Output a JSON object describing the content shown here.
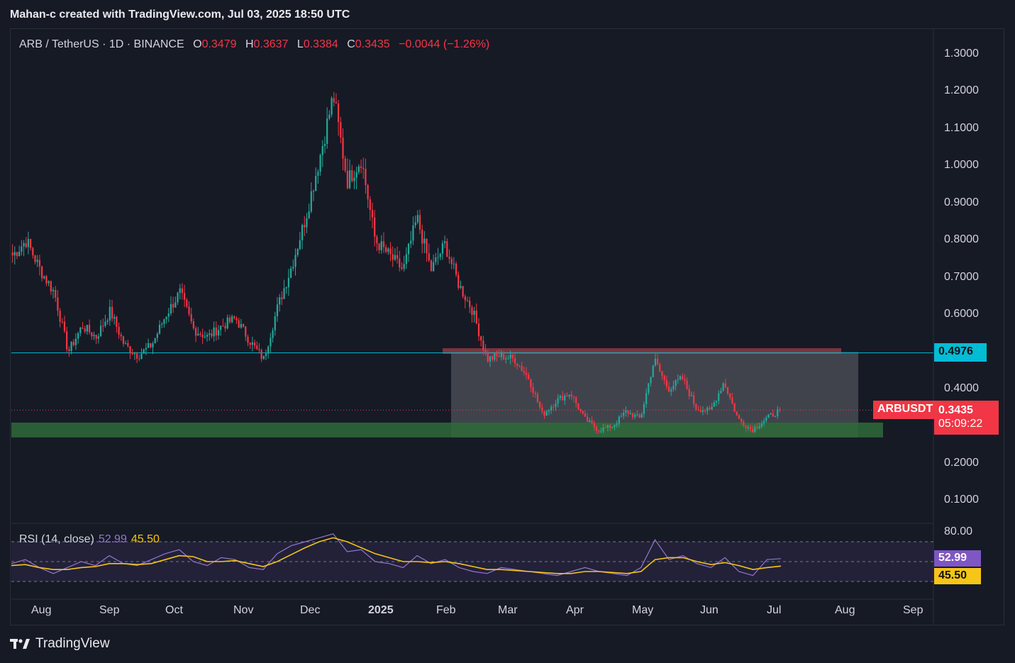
{
  "header": {
    "credit": "Mahan-c created with TradingView.com, Jul 03, 2025 18:50 UTC"
  },
  "legend": {
    "symbol": "ARB / TetherUS · 1D · BINANCE",
    "open_label": "O",
    "open": "0.3479",
    "high_label": "H",
    "high": "0.3637",
    "low_label": "L",
    "low": "0.3384",
    "close_label": "C",
    "close": "0.3435",
    "change": "−0.0044 (−1.26%)"
  },
  "rsi_legend": {
    "label": "RSI (14, close)",
    "rsi": "52.99",
    "ma": "45.50"
  },
  "badges": {
    "level": "0.4976",
    "symbol": "ARBUSDT",
    "price": "0.3435",
    "countdown": "05:09:22",
    "rsi": "52.99",
    "rsi_ma": "45.50"
  },
  "footer": {
    "brand": "TradingView"
  },
  "colors": {
    "up": "#26a69a",
    "down": "#f23645",
    "rsi": "#9575cd",
    "rsi_ma": "#f5c518",
    "level": "#00bcd4",
    "support": "#2e6b3a",
    "resistance": "#b23a48"
  },
  "chart_data": {
    "type": "candlestick",
    "price_axis": {
      "ticks": [
        "1.3000",
        "1.2000",
        "1.1000",
        "1.0000",
        "0.9000",
        "0.8000",
        "0.7000",
        "0.6000",
        "0.4000",
        "0.2000",
        "0.1000"
      ],
      "range": [
        0.05,
        1.32
      ]
    },
    "time_axis": {
      "ticks": [
        "Aug",
        "Sep",
        "Oct",
        "Nov",
        "Dec",
        "2025",
        "Feb",
        "Mar",
        "Apr",
        "May",
        "Jun",
        "Jul",
        "Aug",
        "Sep"
      ]
    },
    "rsi_axis": {
      "ticks": [
        "80.00"
      ],
      "upper": 70,
      "mid": 50,
      "lower": 30
    },
    "horizontal_level": 0.4976,
    "current_price": 0.3435,
    "support_zone": [
      0.27,
      0.31
    ],
    "resistance_zone": [
      0.495,
      0.51
    ],
    "range_box": {
      "from": "Feb",
      "to": "Aug",
      "low": 0.27,
      "high": 0.5
    },
    "close_path": [
      {
        "month": "Jul",
        "price": 0.76
      },
      {
        "month": "Jul",
        "price": 0.8
      },
      {
        "month": "Jul",
        "price": 0.72
      },
      {
        "month": "Jul",
        "price": 0.66
      },
      {
        "month": "Aug",
        "price": 0.5
      },
      {
        "month": "Aug",
        "price": 0.57
      },
      {
        "month": "Aug",
        "price": 0.54
      },
      {
        "month": "Sep",
        "price": 0.61
      },
      {
        "month": "Sep",
        "price": 0.52
      },
      {
        "month": "Sep",
        "price": 0.49
      },
      {
        "month": "Sep",
        "price": 0.52
      },
      {
        "month": "Oct",
        "price": 0.6
      },
      {
        "month": "Oct",
        "price": 0.66
      },
      {
        "month": "Oct",
        "price": 0.56
      },
      {
        "month": "Oct",
        "price": 0.54
      },
      {
        "month": "Oct",
        "price": 0.57
      },
      {
        "month": "Nov",
        "price": 0.59
      },
      {
        "month": "Nov",
        "price": 0.53
      },
      {
        "month": "Nov",
        "price": 0.48
      },
      {
        "month": "Nov",
        "price": 0.62
      },
      {
        "month": "Nov",
        "price": 0.73
      },
      {
        "month": "Nov",
        "price": 0.86
      },
      {
        "month": "Dec",
        "price": 1.02
      },
      {
        "month": "Dec",
        "price": 1.19
      },
      {
        "month": "Dec",
        "price": 0.96
      },
      {
        "month": "Dec",
        "price": 1.02
      },
      {
        "month": "Dec",
        "price": 0.8
      },
      {
        "month": "Dec",
        "price": 0.76
      },
      {
        "month": "2025",
        "price": 0.72
      },
      {
        "month": "2025",
        "price": 0.86
      },
      {
        "month": "2025",
        "price": 0.72
      },
      {
        "month": "2025",
        "price": 0.79
      },
      {
        "month": "2025",
        "price": 0.68
      },
      {
        "month": "2025",
        "price": 0.61
      },
      {
        "month": "Feb",
        "price": 0.48
      },
      {
        "month": "Feb",
        "price": 0.49
      },
      {
        "month": "Feb",
        "price": 0.48
      },
      {
        "month": "Mar",
        "price": 0.43
      },
      {
        "month": "Mar",
        "price": 0.33
      },
      {
        "month": "Mar",
        "price": 0.37
      },
      {
        "month": "Mar",
        "price": 0.39
      },
      {
        "month": "Apr",
        "price": 0.32
      },
      {
        "month": "Apr",
        "price": 0.29
      },
      {
        "month": "Apr",
        "price": 0.3
      },
      {
        "month": "Apr",
        "price": 0.34
      },
      {
        "month": "May",
        "price": 0.32
      },
      {
        "month": "May",
        "price": 0.48
      },
      {
        "month": "May",
        "price": 0.4
      },
      {
        "month": "May",
        "price": 0.43
      },
      {
        "month": "Jun",
        "price": 0.35
      },
      {
        "month": "Jun",
        "price": 0.34
      },
      {
        "month": "Jun",
        "price": 0.42
      },
      {
        "month": "Jun",
        "price": 0.32
      },
      {
        "month": "Jun",
        "price": 0.29
      },
      {
        "month": "Jul",
        "price": 0.32
      },
      {
        "month": "Jul",
        "price": 0.3435
      }
    ],
    "rsi_series": [
      {
        "name": "RSI",
        "values": [
          48,
          52,
          44,
          38,
          44,
          50,
          46,
          56,
          48,
          46,
          52,
          58,
          62,
          50,
          46,
          54,
          52,
          44,
          42,
          58,
          66,
          70,
          74,
          78,
          60,
          62,
          50,
          48,
          44,
          56,
          48,
          52,
          44,
          40,
          38,
          44,
          42,
          40,
          38,
          36,
          40,
          44,
          40,
          38,
          36,
          44,
          72,
          52,
          56,
          48,
          44,
          54,
          40,
          36,
          52,
          53
        ]
      },
      {
        "name": "MA",
        "values": [
          46,
          47,
          44,
          42,
          42,
          44,
          45,
          48,
          48,
          47,
          48,
          52,
          56,
          55,
          50,
          50,
          51,
          48,
          45,
          50,
          57,
          64,
          70,
          74,
          70,
          64,
          58,
          54,
          50,
          50,
          49,
          50,
          48,
          45,
          42,
          42,
          41,
          40,
          39,
          38,
          38,
          40,
          40,
          39,
          38,
          40,
          52,
          54,
          54,
          50,
          47,
          49,
          46,
          42,
          44,
          45.5
        ]
      }
    ]
  }
}
